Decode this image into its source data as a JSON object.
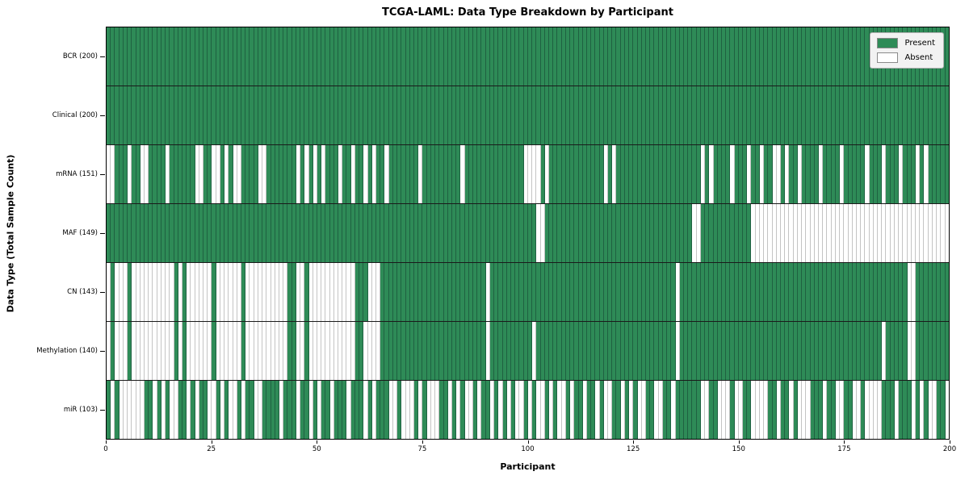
{
  "title": "TCGA-LAML: Data Type Breakdown by Participant",
  "xlabel": "Participant",
  "ylabel": "Data Type (Total Sample Count)",
  "legend": {
    "present_label": "Present",
    "absent_label": "Absent"
  },
  "colors": {
    "present": "#2e8b57",
    "absent": "#ffffff",
    "present_edge": "#1f6141",
    "absent_edge": "#c4c4c4"
  },
  "chart_data": {
    "type": "heatmap",
    "x_axis": {
      "label": "Participant",
      "range": [
        0,
        200
      ],
      "ticks": [
        0,
        25,
        50,
        75,
        100,
        125,
        150,
        175,
        200
      ]
    },
    "y_axis": {
      "label": "Data Type (Total Sample Count)"
    },
    "n_participants": 200,
    "legend_position": "upper right",
    "cell_states": {
      "1": "Present",
      "0": "Absent"
    },
    "rows": [
      {
        "label": "BCR (200)",
        "data_type": "BCR",
        "total_samples": 200,
        "pattern_chunks": [
          "1111111111",
          "1111111111",
          "1111111111",
          "1111111111",
          "1111111111",
          "1111111111",
          "1111111111",
          "1111111111",
          "1111111111",
          "1111111111",
          "1111111111",
          "1111111111",
          "1111111111",
          "1111111111",
          "1111111111",
          "1111111111",
          "1111111111",
          "1111111111",
          "1111111111",
          "1111111111"
        ]
      },
      {
        "label": "Clinical (200)",
        "data_type": "Clinical",
        "total_samples": 200,
        "pattern_chunks": [
          "1111111111",
          "1111111111",
          "1111111111",
          "1111111111",
          "1111111111",
          "1111111111",
          "1111111111",
          "1111111111",
          "1111111111",
          "1111111111",
          "1111111111",
          "1111111111",
          "1111111111",
          "1111111111",
          "1111111111",
          "1111111111",
          "1111111111",
          "1111111111",
          "1111111111",
          "1111111111"
        ]
      },
      {
        "label": "mRNA (151)",
        "data_type": "mRNA",
        "total_samples": 151,
        "pattern_chunks": [
          "0011101100",
          "1111011111",
          "1001100101",
          "0011110011",
          "1111101010",
          "1011101101",
          "1010110111",
          "1111011111",
          "1111011111",
          "1111111110",
          "0001011111",
          "1111111101",
          "0111111111",
          "1111111111",
          "1010111101",
          "1101101100",
          "1011011110",
          "1111011111",
          "0111011101",
          "1101011111"
        ]
      },
      {
        "label": "MAF (149)",
        "data_type": "MAF",
        "total_samples": 149,
        "pattern_chunks": [
          "1111111111",
          "1111111111",
          "1111111111",
          "1111111111",
          "1111111111",
          "1111111111",
          "1111111111",
          "1111111111",
          "1111111111",
          "1111111111",
          "1100111111",
          "1111111111",
          "1111111111",
          "1111111110",
          "0111111111",
          "1110000000",
          "0000000000",
          "0000000000",
          "0000000000",
          "0000000000"
        ]
      },
      {
        "label": "CN (143)",
        "data_type": "CN",
        "total_samples": 143,
        "pattern_chunks": [
          "0100010000",
          "0000001010",
          "0000010000",
          "0010000000",
          "0001100100",
          "0000000001",
          "1100011111",
          "1111111111",
          "1111111111",
          "0111111111",
          "1111111111",
          "1111111111",
          "1111111111",
          "1111101111",
          "1111111111",
          "1111111111",
          "1111111111",
          "1111111111",
          "1111111111",
          "0011111111"
        ]
      },
      {
        "label": "Methylation (140)",
        "data_type": "Methylation",
        "total_samples": 140,
        "pattern_chunks": [
          "0100010000",
          "0000001010",
          "0000010000",
          "0010000000",
          "0001100100",
          "0000000001",
          "1000011111",
          "1111111111",
          "1111111111",
          "0111111111",
          "1011111111",
          "1111111111",
          "1111111111",
          "1111101111",
          "1111111111",
          "1111111111",
          "1111111111",
          "1111111111",
          "1111011111",
          "0011111111"
        ]
      },
      {
        "label": "miR (103)",
        "data_type": "miR",
        "total_samples": 103,
        "pattern_chunks": [
          "1010000001",
          "1010100110",
          "1011001010",
          "0101100111",
          "1011101101",
          "0110111011",
          "1010111001",
          "0001010001",
          "1010100101",
          "1010101001",
          "0100101001",
          "0110110100",
          "1101010011",
          "0011011111",
          "1001100010",
          "0110000110",
          "1101000111",
          "0110011001",
          "0000111011",
          "1010100110"
        ]
      }
    ]
  }
}
